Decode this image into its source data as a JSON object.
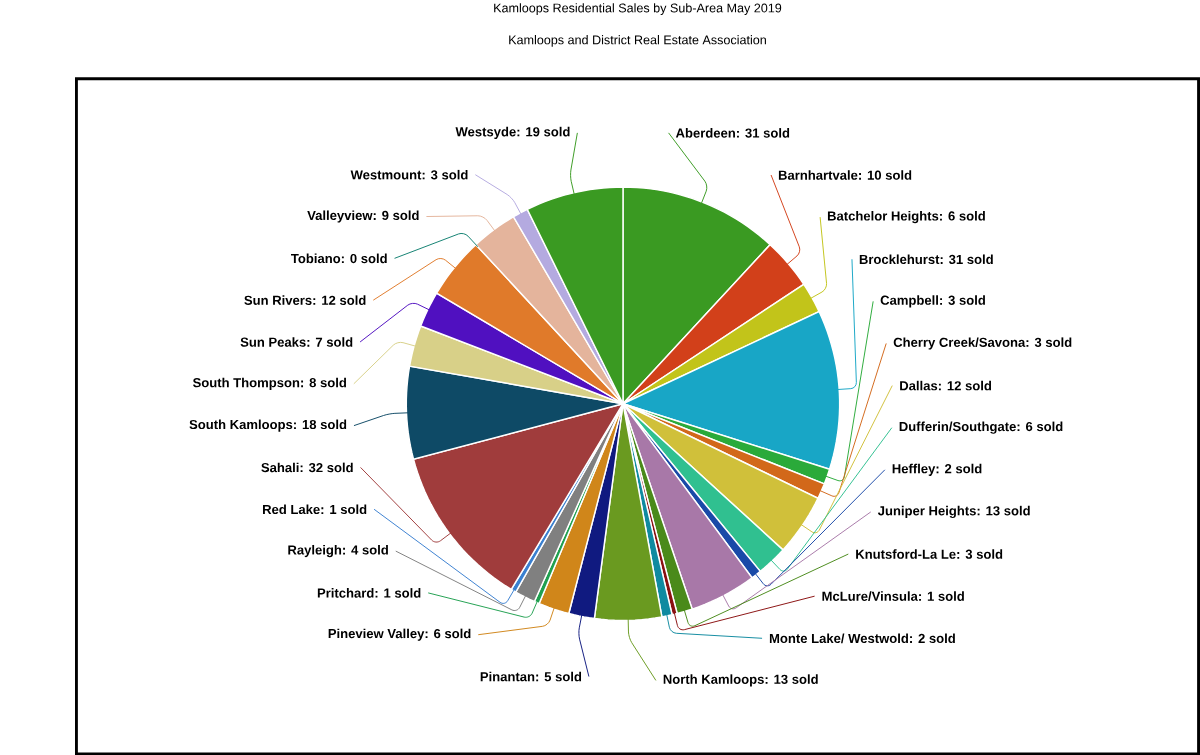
{
  "chart_data": {
    "type": "pie",
    "title": "Kamloops Residential Sales by Sub-Area May 2019",
    "subtitle": "Kamloops and District Real Estate Association",
    "categories": [
      "Aberdeen: 31 sold",
      "Barnhartvale: 10 sold",
      "Batchelor Heights: 6 sold",
      "Brocklehurst: 31 sold",
      "Campbell: 3 sold",
      "Cherry Creek/Savona: 3 sold",
      "Dallas: 12 sold",
      "Dufferin/Southgate: 6 sold",
      "Heffley: 2 sold",
      "Juniper Heights: 13 sold",
      "Knutsford-La Le: 3 sold",
      "McLure/Vinsula: 1 sold",
      "Monte Lake/ Westwold: 2 sold",
      "North Kamloops: 13 sold",
      "Pinantan: 5 sold",
      "Pineview Valley: 6 sold",
      "Pritchard: 1 sold",
      "Rayleigh: 4 sold",
      "Red Lake: 1 sold",
      "Sahali: 32 sold",
      "South Kamloops: 18 sold",
      "South Thompson: 8 sold",
      "Sun Peaks: 7 sold",
      "Sun Rivers: 12 sold",
      "Tobiano: 0 sold",
      "Valleyview: 9 sold",
      "Westmount: 3 sold",
      "Westsyde: 19 sold"
    ],
    "values": [
      31,
      10,
      6,
      31,
      3,
      3,
      12,
      6,
      2,
      13,
      3,
      1,
      2,
      13,
      5,
      6,
      1,
      4,
      1,
      32,
      18,
      8,
      7,
      12,
      0,
      9,
      3,
      19
    ],
    "colors": [
      "#3a9a22",
      "#d2401a",
      "#c2c41a",
      "#18a6c6",
      "#2aaa3a",
      "#d2681a",
      "#d0c03a",
      "#30c090",
      "#1a4aa8",
      "#a878a8",
      "#4a8a1a",
      "#8a1010",
      "#108aa0",
      "#6a9a20",
      "#101a80",
      "#d0861a",
      "#20a050",
      "#808080",
      "#3a80d0",
      "#a03c3c",
      "#0e4a66",
      "#d8d088",
      "#5010c0",
      "#e07a2a",
      "#108070",
      "#e4b49c",
      "#b4aae0",
      "#3a9a22"
    ]
  }
}
